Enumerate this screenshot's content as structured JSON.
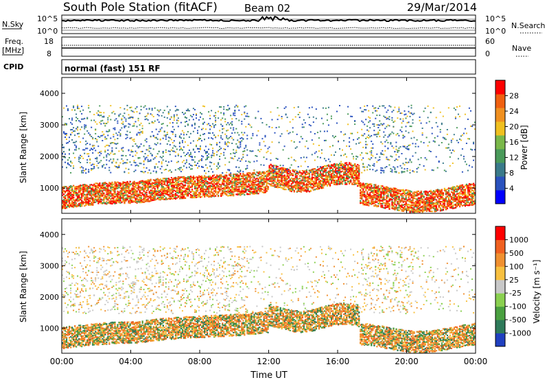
{
  "header": {
    "station": "South Pole Station (fitACF)",
    "beam": "Beam 02",
    "date": "29/Mar/2014"
  },
  "top_panels": {
    "nsky_label": "N.Sky",
    "nsky_ticks": [
      "10^5",
      "10^0"
    ],
    "nsearch_label": "N.Search",
    "nsearch_ticks": [
      "10^5",
      "10^0"
    ],
    "freq_label": "Freq.",
    "freq_unit": "[MHz]",
    "freq_ticks": [
      "18",
      "8"
    ],
    "nave_label": "Nave",
    "nave_ticks": [
      "60",
      "0"
    ],
    "cpid_label": "CPID",
    "cpid_text": "normal (fast) 151 RF"
  },
  "chart_data": [
    {
      "type": "heatmap",
      "name": "power-panel",
      "ylabel": "Slant Range [km]",
      "yticks": [
        1000,
        2000,
        3000,
        4000
      ],
      "ylim": [
        200,
        4500
      ],
      "x": [
        "00:00",
        "04:00",
        "08:00",
        "12:00",
        "16:00",
        "20:00",
        "00:00"
      ],
      "colorbar": {
        "label": "Power [dB]",
        "ticks": [
          "28",
          "24",
          "20",
          "16",
          "12",
          "8",
          "4"
        ],
        "colors": [
          "#0000ff",
          "#2a52be",
          "#3a7a8a",
          "#4a9a5a",
          "#7ab84a",
          "#f0c020",
          "#f09020",
          "#f06010",
          "#ff0000"
        ]
      }
    },
    {
      "type": "heatmap",
      "name": "velocity-panel",
      "ylabel": "Slant Range [km]",
      "yticks": [
        1000,
        2000,
        3000,
        4000
      ],
      "ylim": [
        200,
        4500
      ],
      "x": [
        "00:00",
        "04:00",
        "08:00",
        "12:00",
        "16:00",
        "20:00",
        "00:00"
      ],
      "xlabel": "Time UT",
      "colorbar": {
        "label": "Velocity [m s⁻¹]",
        "ticks": [
          "1000",
          "500",
          "100",
          "25",
          "-25",
          "-100",
          "-500",
          "-1000"
        ],
        "colors": [
          "#2040c0",
          "#2e7a5a",
          "#4aa040",
          "#8ad050",
          "#c8c8c8",
          "#f8c040",
          "#f09030",
          "#f06020",
          "#ff0000"
        ]
      }
    }
  ]
}
